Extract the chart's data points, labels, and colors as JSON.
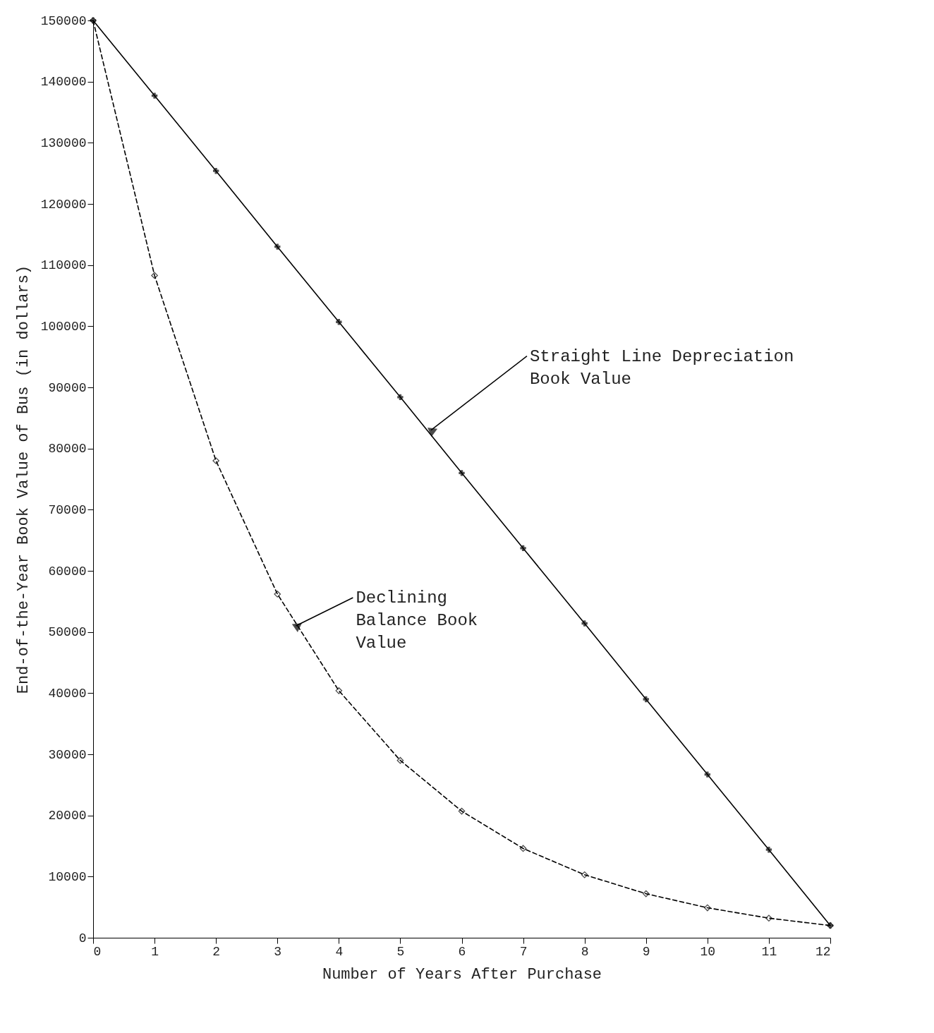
{
  "chart_data": {
    "type": "line",
    "xlabel": "Number of Years After Purchase",
    "ylabel": "End-of-the-Year Book Value of Bus (in dollars)",
    "x": [
      0,
      1,
      2,
      3,
      4,
      5,
      6,
      7,
      8,
      9,
      10,
      11,
      12
    ],
    "series": [
      {
        "color": "#000000",
        "marker": "cross",
        "line_style": "solid",
        "values": [
          150000,
          137700,
          125400,
          113000,
          100700,
          88400,
          76000,
          63700,
          51400,
          39000,
          26700,
          14400,
          2000
        ]
      },
      {
        "color": "#000000",
        "marker": "diamond",
        "line_style": "dashed",
        "values": [
          150000,
          108300,
          78000,
          56200,
          40400,
          29000,
          20700,
          14600,
          10300,
          7200,
          4900,
          3200,
          2000
        ]
      }
    ],
    "xlim": [
      0,
      12
    ],
    "xticks": [
      0,
      1,
      2,
      3,
      4,
      5,
      6,
      7,
      8,
      9,
      10,
      11,
      12
    ],
    "ylim": [
      0,
      150000
    ],
    "yticks": [
      0,
      10000,
      20000,
      30000,
      40000,
      50000,
      60000,
      70000,
      80000,
      90000,
      100000,
      110000,
      120000,
      130000,
      140000,
      150000
    ],
    "grid": false,
    "annotations": [
      {
        "text": "Straight Line Depreciation\nBook Value",
        "x": 5.5,
        "y": 83000
      },
      {
        "text": "Declining\nBalance Book\nValue",
        "x": 3.3,
        "y": 51000
      }
    ]
  }
}
